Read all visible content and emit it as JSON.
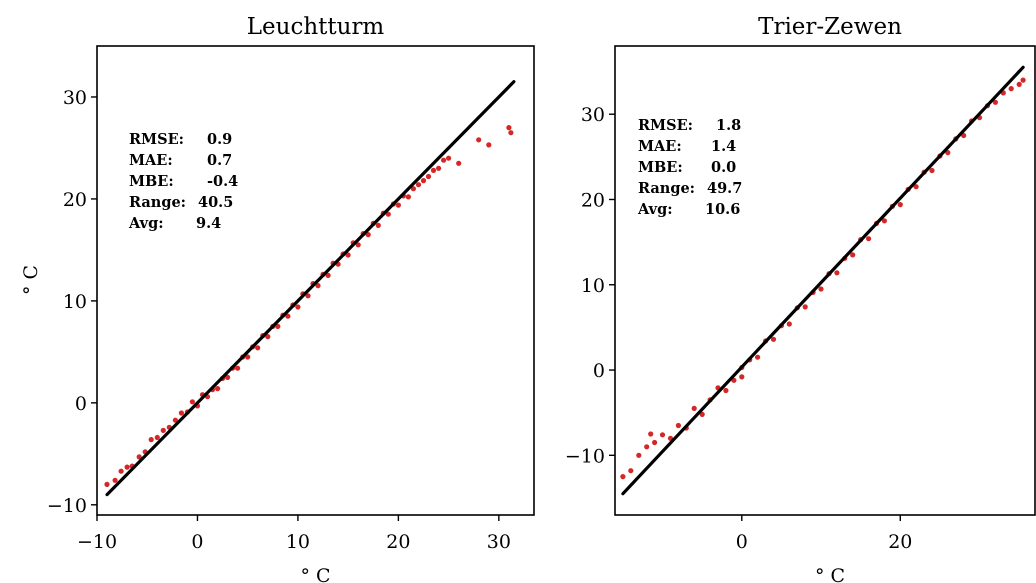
{
  "chart_data": [
    {
      "type": "scatter",
      "title": "Leuchtturm",
      "xlabel": "° C",
      "ylabel": "° C",
      "xlim": [
        -10,
        33.5
      ],
      "ylim": [
        -11,
        35
      ],
      "xticks": [
        -10,
        0,
        10,
        20,
        30
      ],
      "yticks": [
        -10,
        0,
        10,
        20,
        30
      ],
      "grid": false,
      "point_color": "#d62728",
      "line_color": "#000000",
      "fit_line": {
        "x": [
          -9,
          31.5
        ],
        "y": [
          -9,
          31.5
        ]
      },
      "stats": [
        {
          "label": "RMSE:",
          "value": "0.9"
        },
        {
          "label": "MAE:",
          "value": "0.7"
        },
        {
          "label": "MBE:",
          "value": "-0.4"
        },
        {
          "label": "Range:",
          "value": "40.5"
        },
        {
          "label": "Avg:",
          "value": "9.4"
        }
      ],
      "series": [
        {
          "points": [
            [
              -9,
              -8
            ],
            [
              -8.2,
              -7.6
            ],
            [
              -7.6,
              -6.7
            ],
            [
              -7,
              -6.3
            ],
            [
              -6.5,
              -6.2
            ],
            [
              -5.8,
              -5.3
            ],
            [
              -5.2,
              -4.8
            ],
            [
              -4.6,
              -3.6
            ],
            [
              -4,
              -3.4
            ],
            [
              -3.4,
              -2.7
            ],
            [
              -2.8,
              -2.4
            ],
            [
              -2.2,
              -1.7
            ],
            [
              -1.6,
              -1
            ],
            [
              -1,
              -0.9
            ],
            [
              -0.5,
              0.1
            ],
            [
              0,
              -0.3
            ],
            [
              0.5,
              0.8
            ],
            [
              1,
              0.6
            ],
            [
              1.5,
              1.3
            ],
            [
              2,
              1.4
            ],
            [
              2.5,
              2.4
            ],
            [
              3,
              2.5
            ],
            [
              3.5,
              3.4
            ],
            [
              4,
              3.4
            ],
            [
              4.5,
              4.5
            ],
            [
              5,
              4.5
            ],
            [
              5.5,
              5.5
            ],
            [
              6,
              5.4
            ],
            [
              6.5,
              6.6
            ],
            [
              7,
              6.5
            ],
            [
              7.5,
              7.5
            ],
            [
              8,
              7.5
            ],
            [
              8.5,
              8.6
            ],
            [
              9,
              8.5
            ],
            [
              9.5,
              9.6
            ],
            [
              10,
              9.4
            ],
            [
              10.5,
              10.7
            ],
            [
              11,
              10.5
            ],
            [
              11.5,
              11.7
            ],
            [
              12,
              11.5
            ],
            [
              12.5,
              12.6
            ],
            [
              13,
              12.5
            ],
            [
              13.5,
              13.7
            ],
            [
              14,
              13.6
            ],
            [
              14.5,
              14.6
            ],
            [
              15,
              14.5
            ],
            [
              15.5,
              15.7
            ],
            [
              16,
              15.5
            ],
            [
              16.5,
              16.6
            ],
            [
              17,
              16.5
            ],
            [
              17.5,
              17.6
            ],
            [
              18,
              17.4
            ],
            [
              18.5,
              18.6
            ],
            [
              19,
              18.5
            ],
            [
              19.5,
              19.5
            ],
            [
              20,
              19.4
            ],
            [
              20.5,
              20.3
            ],
            [
              21,
              20.2
            ],
            [
              21.5,
              21
            ],
            [
              22,
              21.4
            ],
            [
              22.5,
              21.8
            ],
            [
              23,
              22.2
            ],
            [
              23.5,
              22.8
            ],
            [
              24,
              23
            ],
            [
              24.5,
              23.8
            ],
            [
              25,
              24
            ],
            [
              26,
              23.5
            ],
            [
              28,
              25.8
            ],
            [
              29,
              25.3
            ],
            [
              31,
              27
            ],
            [
              31.2,
              26.5
            ]
          ]
        }
      ]
    },
    {
      "type": "scatter",
      "title": "Trier-Zewen",
      "xlabel": "° C",
      "ylabel": "",
      "xlim": [
        -16,
        37
      ],
      "ylim": [
        -17,
        38
      ],
      "xticks": [
        0,
        20
      ],
      "yticks": [
        -10,
        0,
        10,
        20,
        30
      ],
      "grid": false,
      "point_color": "#d62728",
      "line_color": "#000000",
      "fit_line": {
        "x": [
          -15,
          35.5
        ],
        "y": [
          -14.5,
          35.5
        ]
      },
      "stats": [
        {
          "label": "RMSE:",
          "value": "1.8"
        },
        {
          "label": "MAE:",
          "value": "1.4"
        },
        {
          "label": "MBE:",
          "value": "0.0"
        },
        {
          "label": "Range:",
          "value": "49.7"
        },
        {
          "label": "Avg:",
          "value": "10.6"
        }
      ],
      "series": [
        {
          "points": [
            [
              -15,
              -12.5
            ],
            [
              -14,
              -11.8
            ],
            [
              -13,
              -10
            ],
            [
              -12,
              -9
            ],
            [
              -11.5,
              -7.5
            ],
            [
              -11,
              -8.5
            ],
            [
              -10,
              -7.6
            ],
            [
              -9,
              -8
            ],
            [
              -8,
              -6.5
            ],
            [
              -7,
              -6.8
            ],
            [
              -6,
              -4.5
            ],
            [
              -5,
              -5.2
            ],
            [
              -4,
              -3.5
            ],
            [
              -3,
              -2.1
            ],
            [
              -2,
              -2.4
            ],
            [
              -1,
              -1.2
            ],
            [
              0,
              0.3
            ],
            [
              0,
              -0.8
            ],
            [
              1,
              1.2
            ],
            [
              2,
              1.5
            ],
            [
              3,
              3.4
            ],
            [
              4,
              3.6
            ],
            [
              5,
              5.2
            ],
            [
              6,
              5.4
            ],
            [
              7,
              7.3
            ],
            [
              8,
              7.4
            ],
            [
              9,
              9.1
            ],
            [
              10,
              9.5
            ],
            [
              11,
              11.3
            ],
            [
              12,
              11.4
            ],
            [
              13,
              13.1
            ],
            [
              14,
              13.5
            ],
            [
              15,
              15.3
            ],
            [
              16,
              15.4
            ],
            [
              17,
              17.2
            ],
            [
              18,
              17.5
            ],
            [
              19,
              19.2
            ],
            [
              20,
              19.4
            ],
            [
              21,
              21.2
            ],
            [
              22,
              21.5
            ],
            [
              23,
              23.2
            ],
            [
              24,
              23.4
            ],
            [
              25,
              25.1
            ],
            [
              26,
              25.5
            ],
            [
              27,
              27.1
            ],
            [
              28,
              27.5
            ],
            [
              29,
              29.2
            ],
            [
              30,
              29.6
            ],
            [
              31,
              31
            ],
            [
              32,
              31.4
            ],
            [
              33,
              32.5
            ],
            [
              34,
              33
            ],
            [
              35,
              33.5
            ],
            [
              35.5,
              34
            ]
          ]
        }
      ]
    }
  ]
}
